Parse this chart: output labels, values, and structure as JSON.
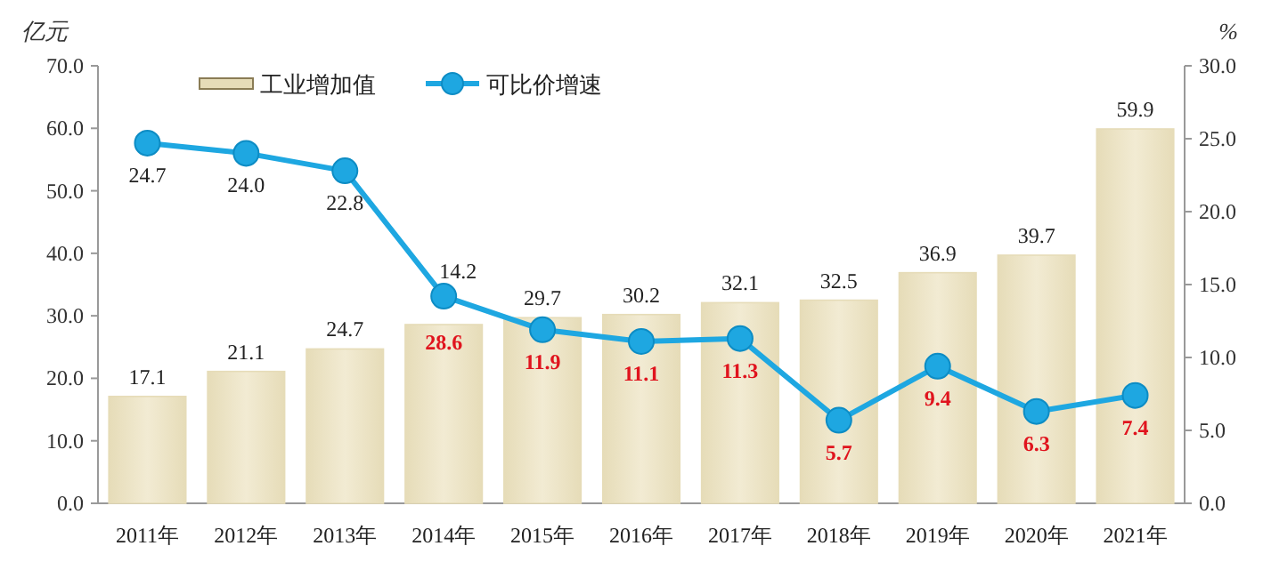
{
  "chart_data": {
    "type": "bar",
    "ylabel": "亿元",
    "y2label": "%",
    "categories": [
      "2011年",
      "2012年",
      "2013年",
      "2014年",
      "2015年",
      "2016年",
      "2017年",
      "2018年",
      "2019年",
      "2020年",
      "2021年"
    ],
    "series": [
      {
        "name": "工业增加值",
        "color": "#e6dcb8",
        "values": [
          17.1,
          21.1,
          24.7,
          28.6,
          29.7,
          30.2,
          32.1,
          32.5,
          36.9,
          39.7,
          59.9
        ]
      },
      {
        "name": "可比价增速",
        "type": "line",
        "axis": "y2",
        "color": "#1ea7e1",
        "marker": "circle",
        "values": [
          24.7,
          24.0,
          22.8,
          14.2,
          11.9,
          11.1,
          11.3,
          5.7,
          9.4,
          6.3,
          7.4
        ],
        "value_labels": [
          "24.7",
          "24.0",
          "22.8",
          "14.2",
          "11.9",
          "11.1",
          "11.3",
          "5.7",
          "9.4",
          "6.3",
          "7.4"
        ]
      }
    ],
    "ylim": [
      0,
      70
    ],
    "yticks": [
      {
        "value": 0,
        "label": "0.0"
      },
      {
        "value": 10,
        "label": "10.0"
      },
      {
        "value": 20,
        "label": "20.0"
      },
      {
        "value": 30,
        "label": "30.0"
      },
      {
        "value": 40,
        "label": "40.0"
      },
      {
        "value": 50,
        "label": "50.0"
      },
      {
        "value": 60,
        "label": "60.0"
      },
      {
        "value": 70,
        "label": "70.0"
      }
    ],
    "y2lim": [
      0,
      30
    ],
    "y2ticks": [
      {
        "value": 0,
        "label": "0.0"
      },
      {
        "value": 5,
        "label": "5.0"
      },
      {
        "value": 10,
        "label": "10.0"
      },
      {
        "value": 15,
        "label": "15.0"
      },
      {
        "value": 20,
        "label": "20.0"
      },
      {
        "value": 25,
        "label": "25.0"
      },
      {
        "value": 30,
        "label": "30.0"
      }
    ],
    "data_labels": true,
    "legend": "top",
    "grid": false
  }
}
